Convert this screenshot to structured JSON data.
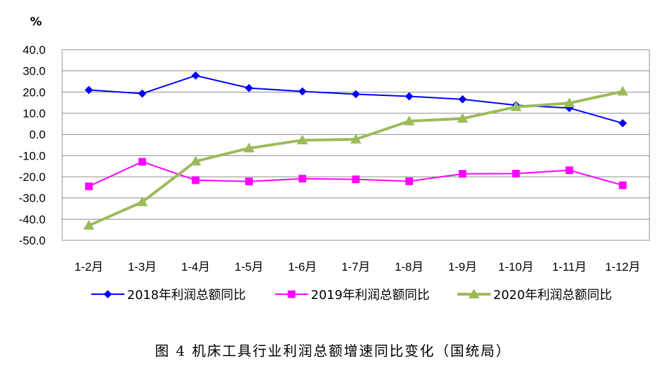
{
  "chart_data": {
    "type": "line",
    "ylabel": "%",
    "ylim": [
      -50,
      40
    ],
    "y_ticks": [
      "40.0",
      "30.0",
      "20.0",
      "10.0",
      "0.0",
      "-10.0",
      "-20.0",
      "-30.0",
      "-40.0",
      "-50.0"
    ],
    "y_tick_values": [
      40,
      30,
      20,
      10,
      0,
      -10,
      -20,
      -30,
      -40,
      -50
    ],
    "categories": [
      "1-2月",
      "1-3月",
      "1-4月",
      "1-5月",
      "1-6月",
      "1-7月",
      "1-8月",
      "1-9月",
      "1-10月",
      "1-11月",
      "1-12月"
    ],
    "grid": true,
    "legend": "bottom",
    "series": [
      {
        "name": "2018年利润总额同比",
        "color": "#0000ff",
        "marker": "diamond",
        "values": [
          21.0,
          19.3,
          27.8,
          21.9,
          20.3,
          19.0,
          18.0,
          16.6,
          13.8,
          12.5,
          5.3
        ]
      },
      {
        "name": "2019年利润总额同比",
        "color": "#ff00ff",
        "marker": "square",
        "values": [
          -24.5,
          -12.9,
          -21.6,
          -22.2,
          -20.9,
          -21.2,
          -22.1,
          -18.6,
          -18.5,
          -16.9,
          -24.0
        ]
      },
      {
        "name": "2020年利润总额同比",
        "color": "#9bbb59",
        "marker": "triangle",
        "values": [
          -43.0,
          -31.9,
          -12.7,
          -6.5,
          -2.7,
          -2.3,
          6.3,
          7.5,
          13.0,
          14.8,
          20.3
        ]
      }
    ]
  },
  "caption": "图 4  机床工具行业利润总额增速同比变化（国统局）"
}
